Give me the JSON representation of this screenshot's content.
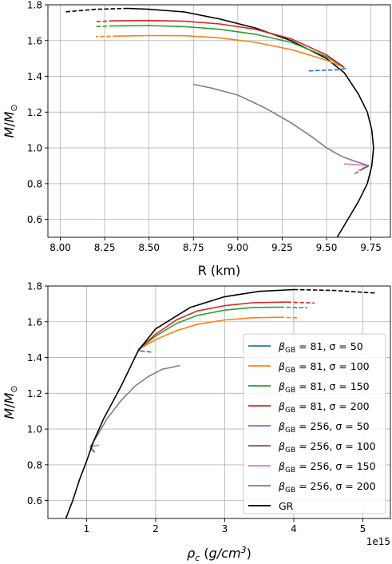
{
  "chart_data": [
    {
      "type": "line",
      "xlabel": "R (km)",
      "ylabel": "M/M_⊙",
      "xlim": [
        7.93,
        9.86
      ],
      "ylim": [
        0.5,
        1.8
      ],
      "xticks": [
        8.0,
        8.25,
        8.5,
        8.75,
        9.0,
        9.25,
        9.5,
        9.75
      ],
      "xtick_labels": [
        "8.00",
        "8.25",
        "8.50",
        "8.75",
        "9.00",
        "9.25",
        "9.50",
        "9.75"
      ],
      "yticks": [
        0.6,
        0.8,
        1.0,
        1.2,
        1.4,
        1.6,
        1.8
      ],
      "ytick_labels": [
        "0.6",
        "0.8",
        "1.0",
        "1.2",
        "1.4",
        "1.6",
        "1.8"
      ],
      "grid": true,
      "series": [
        {
          "id": "gr",
          "color": "#000000",
          "solid": [
            [
              9.56,
              0.5
            ],
            [
              9.62,
              0.6
            ],
            [
              9.68,
              0.7
            ],
            [
              9.73,
              0.8
            ],
            [
              9.755,
              0.9
            ],
            [
              9.765,
              1.0
            ],
            [
              9.755,
              1.1
            ],
            [
              9.73,
              1.2
            ],
            [
              9.68,
              1.3
            ],
            [
              9.6,
              1.42
            ],
            [
              9.5,
              1.5
            ],
            [
              9.3,
              1.6
            ],
            [
              9.1,
              1.67
            ],
            [
              8.9,
              1.72
            ],
            [
              8.7,
              1.76
            ],
            [
              8.5,
              1.775
            ],
            [
              8.38,
              1.78
            ]
          ],
          "dashed": [
            [
              8.38,
              1.78
            ],
            [
              8.2,
              1.775
            ],
            [
              8.02,
              1.76
            ]
          ]
        },
        {
          "id": "b81s50",
          "color": "#1f77b4",
          "solid": [
            [
              9.56,
              1.437
            ],
            [
              9.61,
              1.445
            ]
          ],
          "dashed": [
            [
              9.4,
              1.43
            ],
            [
              9.56,
              1.437
            ]
          ]
        },
        {
          "id": "b81s100",
          "color": "#ff7f0e",
          "solid": [
            [
              9.6,
              1.45
            ],
            [
              9.5,
              1.49
            ],
            [
              9.3,
              1.55
            ],
            [
              9.1,
              1.59
            ],
            [
              8.9,
              1.615
            ],
            [
              8.7,
              1.627
            ],
            [
              8.5,
              1.628
            ],
            [
              8.32,
              1.625
            ]
          ],
          "dashed": [
            [
              8.32,
              1.625
            ],
            [
              8.2,
              1.622
            ]
          ]
        },
        {
          "id": "b81s150",
          "color": "#2ca02c",
          "solid": [
            [
              9.6,
              1.45
            ],
            [
              9.5,
              1.51
            ],
            [
              9.3,
              1.59
            ],
            [
              9.1,
              1.635
            ],
            [
              8.9,
              1.663
            ],
            [
              8.7,
              1.678
            ],
            [
              8.5,
              1.684
            ],
            [
              8.3,
              1.682
            ]
          ],
          "dashed": [
            [
              8.3,
              1.682
            ],
            [
              8.2,
              1.678
            ]
          ]
        },
        {
          "id": "b81s200",
          "color": "#d62728",
          "solid": [
            [
              9.6,
              1.45
            ],
            [
              9.5,
              1.52
            ],
            [
              9.3,
              1.61
            ],
            [
              9.1,
              1.663
            ],
            [
              8.9,
              1.693
            ],
            [
              8.7,
              1.708
            ],
            [
              8.5,
              1.712
            ],
            [
              8.3,
              1.71
            ]
          ],
          "dashed": [
            [
              8.3,
              1.71
            ],
            [
              8.2,
              1.706
            ]
          ]
        },
        {
          "id": "b256s50",
          "color": "#9467bd",
          "solid": [
            [
              9.74,
              0.9
            ],
            [
              9.72,
              0.893
            ]
          ],
          "dashed": [
            [
              9.72,
              0.893
            ],
            [
              9.68,
              0.875
            ]
          ]
        },
        {
          "id": "b256s100",
          "color": "#8c564b",
          "solid": [
            [
              9.74,
              0.9
            ],
            [
              9.71,
              0.885
            ]
          ],
          "dashed": [
            [
              9.71,
              0.885
            ],
            [
              9.66,
              0.855
            ]
          ]
        },
        {
          "id": "b256s150",
          "color": "#e377c2",
          "solid": [
            [
              9.74,
              0.9
            ],
            [
              9.68,
              0.905
            ],
            [
              9.6,
              0.91
            ]
          ],
          "dashed": []
        },
        {
          "id": "b256s200",
          "color": "#7f7f7f",
          "solid": [
            [
              8.75,
              1.355
            ],
            [
              8.85,
              1.335
            ],
            [
              9.0,
              1.295
            ],
            [
              9.15,
              1.225
            ],
            [
              9.3,
              1.14
            ],
            [
              9.42,
              1.06
            ],
            [
              9.5,
              1.0
            ],
            [
              9.58,
              0.955
            ],
            [
              9.66,
              0.925
            ],
            [
              9.74,
              0.9
            ]
          ],
          "dashed": []
        }
      ]
    },
    {
      "type": "line",
      "xlabel": "ρ_c (g/cm³)",
      "ylabel": "M/M_⊙",
      "x_offset_text": "1e15",
      "xlim": [
        0.44,
        5.4
      ],
      "ylim": [
        0.5,
        1.8
      ],
      "xticks": [
        1,
        2,
        3,
        4,
        5
      ],
      "xtick_labels": [
        "1",
        "2",
        "3",
        "4",
        "5"
      ],
      "yticks": [
        0.6,
        0.8,
        1.0,
        1.2,
        1.4,
        1.6,
        1.8
      ],
      "ytick_labels": [
        "0.6",
        "0.8",
        "1.0",
        "1.2",
        "1.4",
        "1.6",
        "1.8"
      ],
      "grid": true,
      "legend_position": "lower-right",
      "series": [
        {
          "id": "b81s50",
          "name_main": "β",
          "name_sub": "GB",
          "name_rest": " = 81, σ = 50",
          "color": "#1f77b4",
          "solid": [
            [
              1.75,
              1.445
            ],
            [
              1.78,
              1.437
            ]
          ],
          "dashed": [
            [
              1.78,
              1.437
            ],
            [
              1.95,
              1.43
            ]
          ]
        },
        {
          "id": "b81s100",
          "name_main": "β",
          "name_sub": "GB",
          "name_rest": " = 81, σ = 100",
          "color": "#ff7f0e",
          "solid": [
            [
              1.75,
              1.445
            ],
            [
              2.0,
              1.5
            ],
            [
              2.3,
              1.55
            ],
            [
              2.6,
              1.585
            ],
            [
              3.0,
              1.61
            ],
            [
              3.4,
              1.622
            ],
            [
              3.8,
              1.625
            ]
          ],
          "dashed": [
            [
              3.8,
              1.625
            ],
            [
              4.05,
              1.622
            ]
          ]
        },
        {
          "id": "b81s150",
          "name_main": "β",
          "name_sub": "GB",
          "name_rest": " = 81, σ = 150",
          "color": "#2ca02c",
          "solid": [
            [
              1.75,
              1.445
            ],
            [
              2.0,
              1.52
            ],
            [
              2.3,
              1.59
            ],
            [
              2.6,
              1.635
            ],
            [
              3.0,
              1.665
            ],
            [
              3.4,
              1.68
            ],
            [
              3.8,
              1.682
            ]
          ],
          "dashed": [
            [
              3.8,
              1.682
            ],
            [
              4.2,
              1.678
            ]
          ]
        },
        {
          "id": "b81s200",
          "name_main": "β",
          "name_sub": "GB",
          "name_rest": " = 81, σ = 200",
          "color": "#d62728",
          "solid": [
            [
              1.75,
              1.445
            ],
            [
              2.0,
              1.53
            ],
            [
              2.3,
              1.61
            ],
            [
              2.6,
              1.66
            ],
            [
              3.0,
              1.69
            ],
            [
              3.4,
              1.706
            ],
            [
              3.9,
              1.71
            ]
          ],
          "dashed": [
            [
              3.9,
              1.71
            ],
            [
              4.3,
              1.705
            ]
          ]
        },
        {
          "id": "b256s50",
          "name_main": "β",
          "name_sub": "GB",
          "name_rest": " = 256, σ = 50",
          "color": "#9467bd",
          "solid": [
            [
              1.05,
              0.9
            ],
            [
              1.07,
              0.893
            ]
          ],
          "dashed": [
            [
              1.07,
              0.893
            ],
            [
              1.1,
              0.875
            ]
          ]
        },
        {
          "id": "b256s100",
          "name_main": "β",
          "name_sub": "GB",
          "name_rest": " = 256, σ = 100",
          "color": "#8c564b",
          "solid": [
            [
              1.05,
              0.9
            ],
            [
              1.08,
              0.885
            ]
          ],
          "dashed": [
            [
              1.08,
              0.885
            ],
            [
              1.12,
              0.87
            ]
          ]
        },
        {
          "id": "b256s150",
          "name_main": "β",
          "name_sub": "GB",
          "name_rest": " = 256, σ = 150",
          "color": "#e377c2",
          "solid": [
            [
              1.05,
              0.9
            ],
            [
              1.1,
              0.905
            ],
            [
              1.18,
              0.91
            ]
          ],
          "dashed": []
        },
        {
          "id": "b256s200",
          "name_main": "β",
          "name_sub": "GB",
          "name_rest": " = 256, σ = 200",
          "color": "#7f7f7f",
          "solid": [
            [
              1.05,
              0.9
            ],
            [
              1.15,
              0.96
            ],
            [
              1.3,
              1.06
            ],
            [
              1.5,
              1.16
            ],
            [
              1.7,
              1.24
            ],
            [
              1.9,
              1.295
            ],
            [
              2.1,
              1.335
            ],
            [
              2.35,
              1.355
            ]
          ],
          "dashed": []
        },
        {
          "id": "gr",
          "name_main": "GR",
          "name_sub": "",
          "name_rest": "",
          "color": "#000000",
          "solid": [
            [
              0.7,
              0.5
            ],
            [
              0.8,
              0.6
            ],
            [
              0.9,
              0.72
            ],
            [
              1.0,
              0.82
            ],
            [
              1.1,
              0.93
            ],
            [
              1.25,
              1.06
            ],
            [
              1.5,
              1.24
            ],
            [
              1.75,
              1.44
            ],
            [
              2.0,
              1.56
            ],
            [
              2.5,
              1.68
            ],
            [
              3.0,
              1.74
            ],
            [
              3.5,
              1.77
            ],
            [
              4.0,
              1.78
            ]
          ],
          "dashed": [
            [
              4.0,
              1.78
            ],
            [
              4.6,
              1.775
            ],
            [
              5.2,
              1.76
            ]
          ]
        }
      ]
    }
  ]
}
